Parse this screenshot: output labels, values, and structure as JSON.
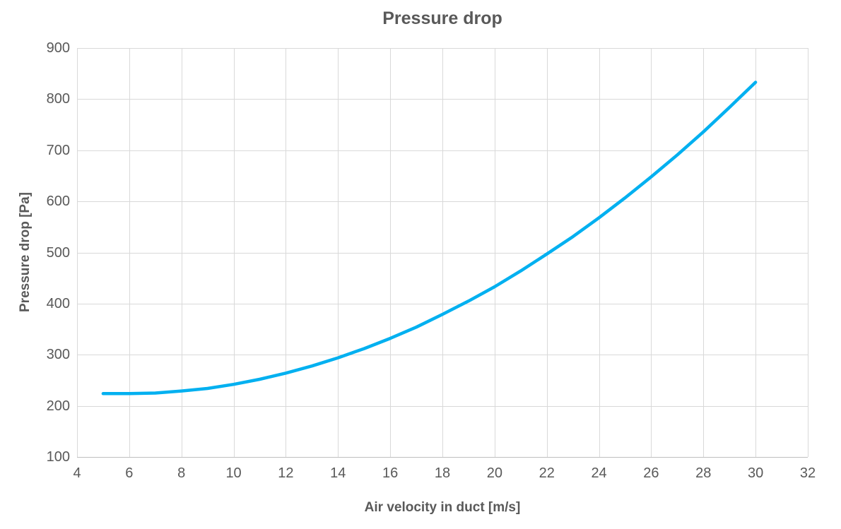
{
  "chart_data": {
    "type": "line",
    "title": "Pressure drop",
    "xlabel": "Air velocity in duct [m/s]",
    "ylabel": "Pressure drop [Pa]",
    "x": [
      5,
      6,
      7,
      8,
      9,
      10,
      11,
      12,
      13,
      14,
      15,
      16,
      17,
      18,
      19,
      20,
      21,
      22,
      23,
      24,
      25,
      26,
      27,
      28,
      29,
      30
    ],
    "series": [
      {
        "name": "Pressure drop",
        "values": [
          224,
          224,
          225,
          229,
          234,
          242,
          252,
          264,
          278,
          294,
          312,
          332,
          354,
          379,
          405,
          433,
          464,
          497,
          531,
          568,
          607,
          648,
          691,
          736,
          784,
          833
        ]
      }
    ],
    "xlim": [
      4,
      32
    ],
    "ylim": [
      100,
      900
    ],
    "xtick_step": 2,
    "ytick_step": 100,
    "grid": true,
    "legend": "none",
    "line_color": "#00B0F0",
    "grid_color": "#D9D9D9",
    "axis_line_color": "#BFBFBF",
    "text_color": "#595959",
    "background": "#FFFFFF"
  }
}
